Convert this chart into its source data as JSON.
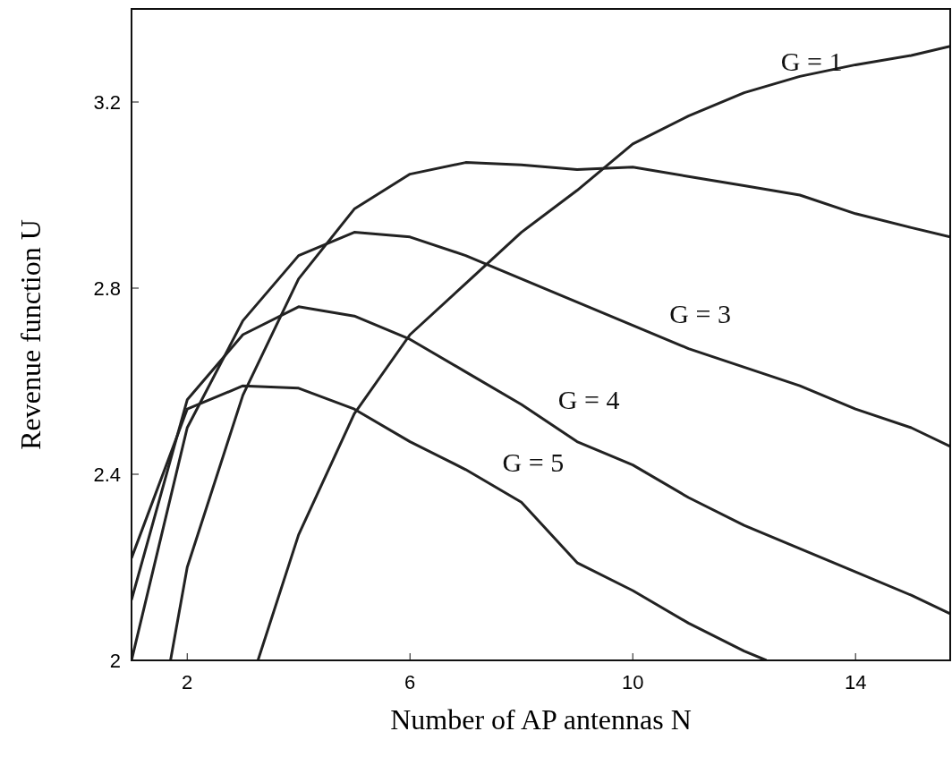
{
  "chart_data": {
    "type": "line",
    "xlabel": "Number of AP antennas N",
    "ylabel": "Revenue function U",
    "xlim": [
      1,
      15.7
    ],
    "ylim": [
      2,
      3.4
    ],
    "xticks": [
      2,
      6,
      10,
      14
    ],
    "yticks": [
      2,
      2.4,
      2.8,
      3.2
    ],
    "grid": false,
    "marker": "none",
    "line_style": "solid",
    "series": [
      {
        "name": "G = 1",
        "color": "#222222",
        "x": [
          3.27,
          4,
          5,
          6,
          7,
          8,
          9,
          10,
          11,
          12,
          13,
          14,
          15,
          15.7
        ],
        "values": [
          2.0,
          2.27,
          2.53,
          2.7,
          2.81,
          2.92,
          3.01,
          3.11,
          3.17,
          3.22,
          3.255,
          3.28,
          3.3,
          3.32
        ]
      },
      {
        "color": "#222222",
        "x": [
          1.7,
          2,
          3,
          4,
          5,
          6,
          7,
          8,
          9,
          10,
          11,
          12,
          13,
          14,
          15,
          15.7
        ],
        "values": [
          2.0,
          2.2,
          2.57,
          2.82,
          2.97,
          3.045,
          3.07,
          3.065,
          3.055,
          3.06,
          3.04,
          3.02,
          3.0,
          2.96,
          2.93,
          2.91
        ]
      },
      {
        "name": "G = 3",
        "color": "#222222",
        "x": [
          1,
          2,
          3,
          4,
          5,
          6,
          7,
          8,
          9,
          10,
          11,
          12,
          13,
          14,
          15,
          15.7
        ],
        "values": [
          2.0,
          2.5,
          2.73,
          2.87,
          2.92,
          2.91,
          2.87,
          2.82,
          2.77,
          2.72,
          2.67,
          2.63,
          2.59,
          2.54,
          2.5,
          2.46
        ]
      },
      {
        "name": "G = 4",
        "color": "#222222",
        "x": [
          1,
          2,
          3,
          4,
          5,
          6,
          7,
          8,
          9,
          10,
          11,
          12,
          13,
          14,
          15,
          15.7
        ],
        "values": [
          2.13,
          2.56,
          2.7,
          2.76,
          2.74,
          2.69,
          2.62,
          2.55,
          2.47,
          2.42,
          2.35,
          2.29,
          2.24,
          2.19,
          2.14,
          2.1
        ]
      },
      {
        "name": "G = 5",
        "color": "#222222",
        "x": [
          1,
          2,
          3,
          4,
          5,
          6,
          7,
          8,
          9,
          10,
          11,
          12,
          12.4
        ],
        "values": [
          2.22,
          2.54,
          2.59,
          2.585,
          2.54,
          2.47,
          2.41,
          2.34,
          2.21,
          2.15,
          2.08,
          2.02,
          2.0
        ]
      }
    ]
  }
}
